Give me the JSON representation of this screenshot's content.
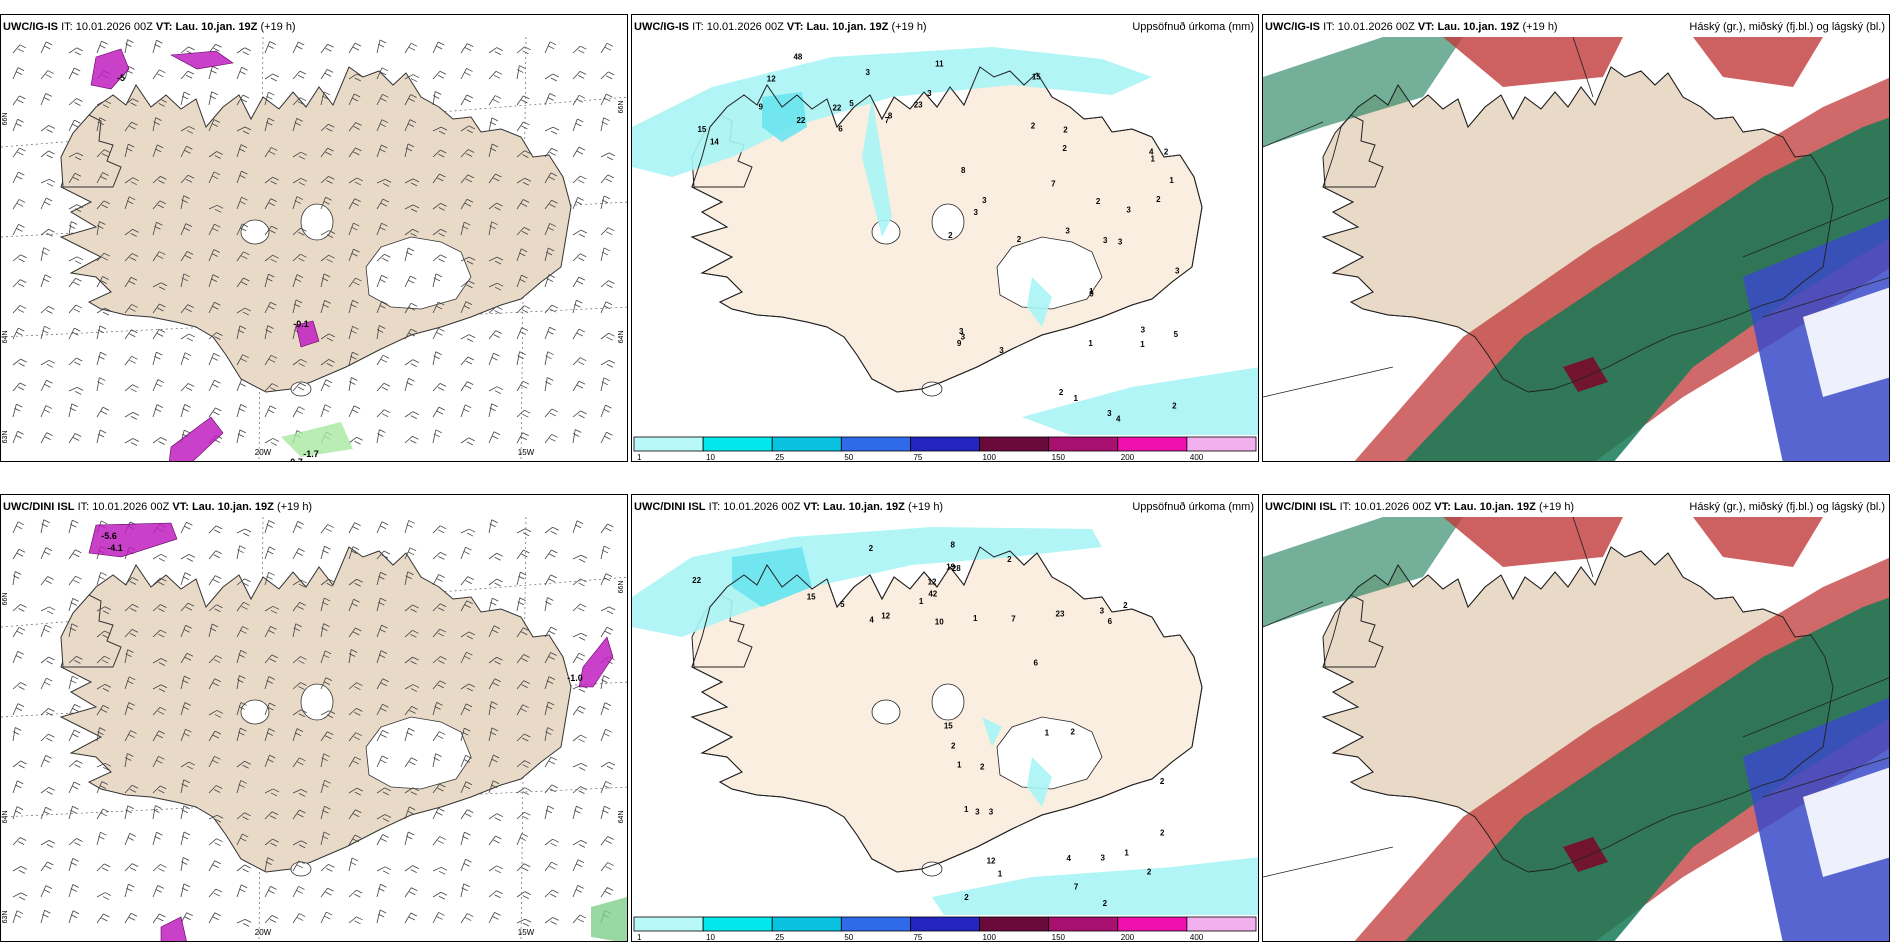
{
  "colors": {
    "land_wind": "#e9dac8",
    "land_precip": "#faeee0",
    "precip_light": "#a8f4f6",
    "precip_mid": "#6ce4ee",
    "wind_magenta": "#c01ec0",
    "cloud_high_green": "#157a55",
    "cloud_mid_red": "#c03838",
    "cloud_low_blue": "#3a4ac8"
  },
  "panels": [
    {
      "id": "p1",
      "model": "UWC/IG-IS",
      "it_label": "IT:",
      "it_value": "10.01.2026 00Z",
      "vt_label": "VT:",
      "vt_value": "Lau. 10.jan. 19Z",
      "lead": "(+19 h)",
      "title_right": "",
      "kind": "wind",
      "lat_labels": [
        "66N",
        "64N",
        "63N"
      ],
      "lon_labels": [
        "20W",
        "15W"
      ],
      "lat_right": [
        "66N",
        "64N"
      ],
      "values": [
        "-5",
        "-1.7",
        "-0.7",
        "-0.1"
      ]
    },
    {
      "id": "p2",
      "model": "UWC/IG-IS",
      "it_label": "IT:",
      "it_value": "10.01.2026 00Z",
      "vt_label": "VT:",
      "vt_value": "Lau. 10.jan. 19Z",
      "lead": "(+19 h)",
      "title_right": "Uppsöfnuð úrkoma (mm)",
      "kind": "precip",
      "numbers": [
        "15",
        "15",
        "12",
        "9",
        "14",
        "6",
        "3",
        "3",
        "5",
        "11",
        "48",
        "22",
        "22",
        "23",
        "7",
        "8",
        "9",
        "3",
        "2",
        "1",
        "3",
        "1",
        "2",
        "2",
        "1",
        "3",
        "2",
        "2",
        "4",
        "3",
        "2",
        "3",
        "3",
        "3",
        "2",
        "1",
        "1",
        "3",
        "9",
        "4",
        "2",
        "1",
        "2",
        "8",
        "3",
        "3",
        "3",
        "5",
        "7",
        "3",
        "2"
      ],
      "colorbar": {
        "ticks": [
          "1",
          "10",
          "25",
          "50",
          "75",
          "100",
          "150",
          "200",
          "400"
        ],
        "colors": [
          "#b9f8f8",
          "#00e8ee",
          "#08c2e0",
          "#2f6ae8",
          "#2424c0",
          "#6a0a3a",
          "#a81070",
          "#f010b0",
          "#f3b0ef"
        ]
      }
    },
    {
      "id": "p3",
      "model": "UWC/IG-IS",
      "it_label": "IT:",
      "it_value": "10.01.2026 00Z",
      "vt_label": "VT:",
      "vt_value": "Lau. 10.jan. 19Z",
      "lead": "(+19 h)",
      "title_right": "Háský (gr.), miðský (fj.bl.) og lágský (bl.)",
      "kind": "cloud"
    },
    {
      "id": "p4",
      "model": "UWC/DINI ISL",
      "it_label": "IT:",
      "it_value": "10.01.2026 00Z",
      "vt_label": "VT:",
      "vt_value": "Lau. 10.jan. 19Z",
      "lead": "(+19 h)",
      "title_right": "",
      "kind": "wind",
      "lat_labels": [
        "66N",
        "64N",
        "63N"
      ],
      "lon_labels": [
        "20W",
        "15W"
      ],
      "lat_right": [
        "66N",
        "64N"
      ],
      "values": [
        "-5.6",
        "-1.0",
        "-4.1"
      ]
    },
    {
      "id": "p5",
      "model": "UWC/DINI ISL",
      "it_label": "IT:",
      "it_value": "10.01.2026 00Z",
      "vt_label": "VT:",
      "vt_value": "Lau. 10.jan. 19Z",
      "lead": "(+19 h)",
      "title_right": "Uppsöfnuð úrkoma (mm)",
      "kind": "precip",
      "numbers": [
        "22",
        "15",
        "19",
        "12",
        "1",
        "2",
        "7",
        "42",
        "12",
        "23",
        "6",
        "28",
        "4",
        "8",
        "5",
        "2",
        "2",
        "2",
        "1",
        "3",
        "3",
        "2",
        "4",
        "1",
        "2",
        "3",
        "2",
        "6",
        "2",
        "1",
        "1",
        "1",
        "1",
        "2",
        "3",
        "7",
        "12",
        "15",
        "10",
        "2",
        "2"
      ],
      "colorbar": {
        "ticks": [
          "1",
          "10",
          "25",
          "50",
          "75",
          "100",
          "150",
          "200",
          "400"
        ],
        "colors": [
          "#b9f8f8",
          "#00e8ee",
          "#08c2e0",
          "#2f6ae8",
          "#2424c0",
          "#6a0a3a",
          "#a81070",
          "#f010b0",
          "#f3b0ef"
        ]
      }
    },
    {
      "id": "p6",
      "model": "UWC/DINI ISL",
      "it_label": "IT:",
      "it_value": "10.01.2026 00Z",
      "vt_label": "VT:",
      "vt_value": "Lau. 10.jan. 19Z",
      "lead": "(+19 h)",
      "title_right": "Háský (gr.), miðský (fj.bl.) og lágský (bl.)",
      "kind": "cloud"
    }
  ]
}
